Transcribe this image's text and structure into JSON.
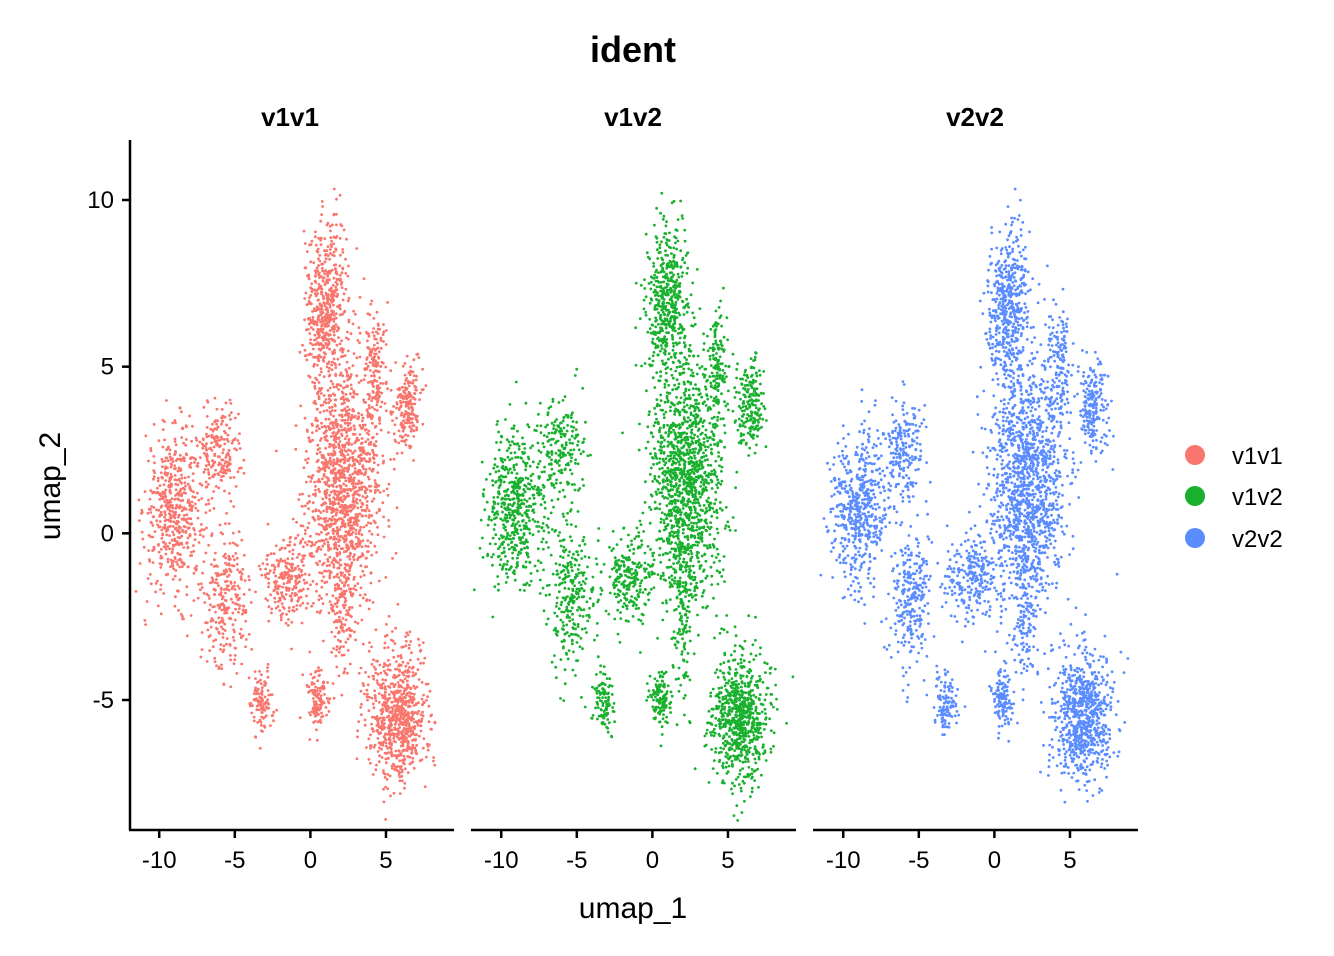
{
  "chart_data": {
    "type": "scatter",
    "title": "ident",
    "xlabel": "umap_1",
    "ylabel": "umap_2",
    "xlim": [
      -12,
      9.5
    ],
    "ylim": [
      -8.9,
      11.8
    ],
    "x_ticks": [
      -10,
      -5,
      0,
      5
    ],
    "x_tick_labels": [
      "-10",
      "-5",
      "0",
      "5"
    ],
    "y_ticks": [
      -5,
      0,
      5,
      10
    ],
    "y_tick_labels": [
      "-5",
      "0",
      "5",
      "10"
    ],
    "grid": false,
    "legend_position": "right",
    "panels": [
      {
        "strip": "v1v1",
        "series": "v1v1"
      },
      {
        "strip": "v1v2",
        "series": "v1v2"
      },
      {
        "strip": "v2v2",
        "series": "v2v2"
      }
    ],
    "series": [
      {
        "name": "v1v1",
        "color": "#F8766D"
      },
      {
        "name": "v1v2",
        "color": "#19B02E"
      },
      {
        "name": "v2v2",
        "color": "#5A8CFF"
      }
    ],
    "clusters": [
      {
        "cx": -9.0,
        "cy": 0.7,
        "sx": 1.3,
        "sy": 1.6,
        "n": 520
      },
      {
        "cx": -6.0,
        "cy": 2.5,
        "sx": 1.0,
        "sy": 1.0,
        "n": 200
      },
      {
        "cx": -5.5,
        "cy": -2.0,
        "sx": 1.0,
        "sy": 1.4,
        "n": 260
      },
      {
        "cx": -3.2,
        "cy": -5.1,
        "sx": 0.5,
        "sy": 0.6,
        "n": 110
      },
      {
        "cx": -1.5,
        "cy": -1.3,
        "sx": 1.2,
        "sy": 0.9,
        "n": 240
      },
      {
        "cx": 0.5,
        "cy": -5.0,
        "sx": 0.5,
        "sy": 0.6,
        "n": 120
      },
      {
        "cx": 2.2,
        "cy": 1.5,
        "sx": 1.6,
        "sy": 2.5,
        "n": 1300
      },
      {
        "cx": 1.0,
        "cy": 6.8,
        "sx": 0.9,
        "sy": 1.6,
        "n": 480
      },
      {
        "cx": 4.3,
        "cy": 5.0,
        "sx": 0.5,
        "sy": 1.2,
        "n": 140
      },
      {
        "cx": 6.5,
        "cy": 3.8,
        "sx": 0.6,
        "sy": 0.9,
        "n": 200
      },
      {
        "cx": 5.8,
        "cy": -5.5,
        "sx": 1.3,
        "sy": 1.3,
        "n": 750
      },
      {
        "cx": 2.0,
        "cy": -2.5,
        "sx": 0.5,
        "sy": 1.5,
        "n": 120
      }
    ]
  }
}
